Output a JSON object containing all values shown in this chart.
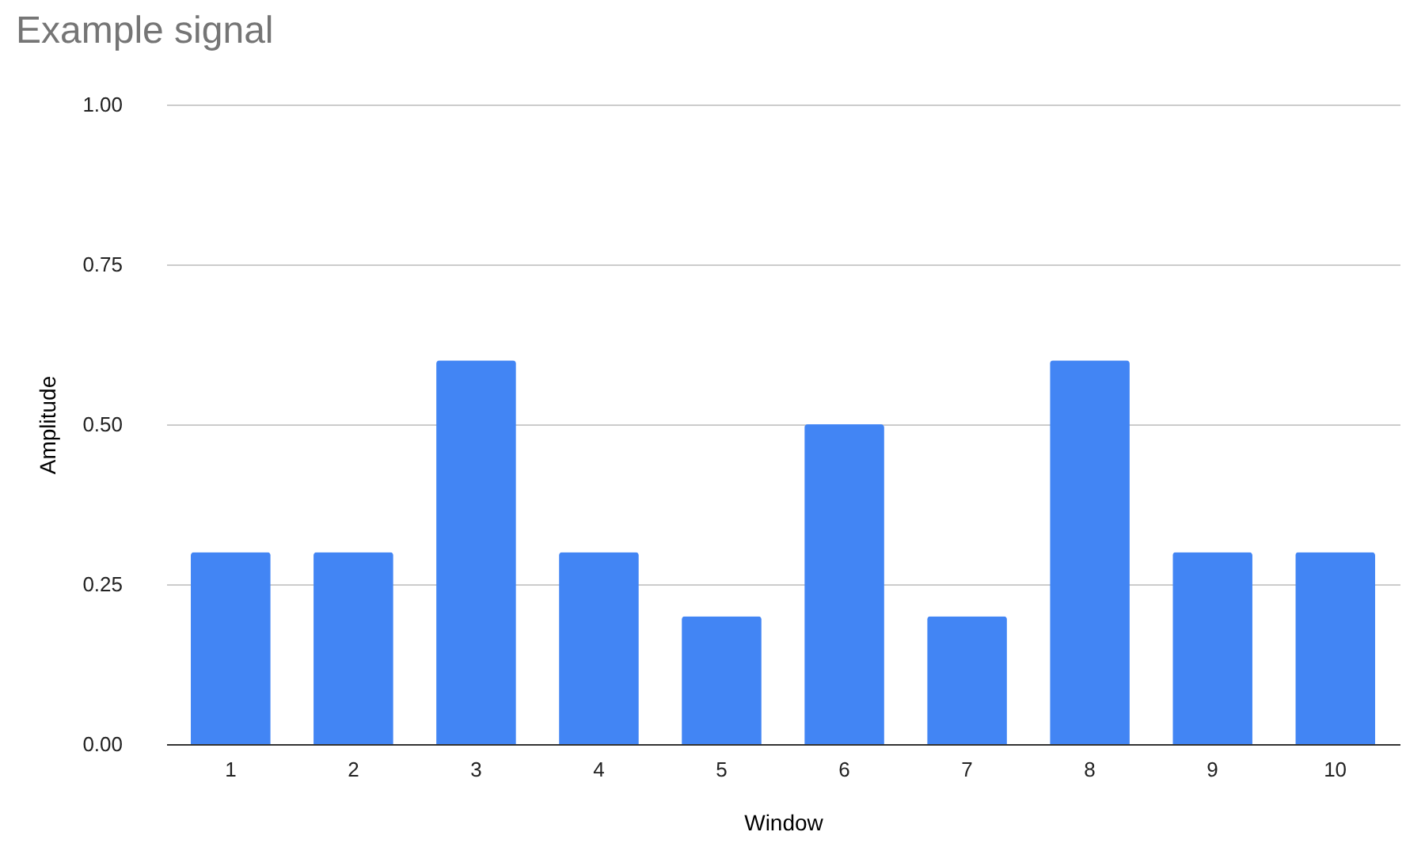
{
  "chart_data": {
    "type": "bar",
    "title": "Example signal",
    "xlabel": "Window",
    "ylabel": "Amplitude",
    "categories": [
      "1",
      "2",
      "3",
      "4",
      "5",
      "6",
      "7",
      "8",
      "9",
      "10"
    ],
    "values": [
      0.3,
      0.3,
      0.6,
      0.3,
      0.2,
      0.5,
      0.2,
      0.6,
      0.3,
      0.3
    ],
    "color": "#4285f4",
    "ylim": [
      0,
      1
    ],
    "yticks": [
      {
        "value": 0,
        "label": "0.00"
      },
      {
        "value": 0.25,
        "label": "0.25"
      },
      {
        "value": 0.5,
        "label": "0.50"
      },
      {
        "value": 0.75,
        "label": "0.75"
      },
      {
        "value": 1,
        "label": "1.00"
      }
    ],
    "grid": "y"
  }
}
